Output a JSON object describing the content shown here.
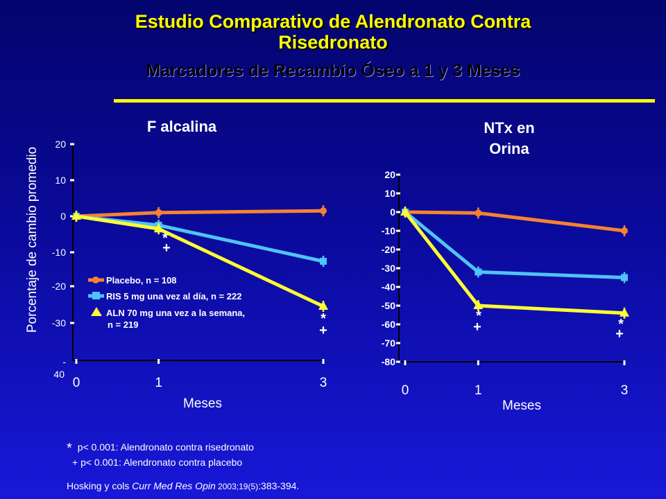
{
  "header": {
    "title_line1": "Estudio Comparativo de Alendronato Contra",
    "title_line2": "Risedronato",
    "subtitle": "Marcadores de Recambio  Óseo a 1 y 3 Meses"
  },
  "colors": {
    "placebo": "#f58231",
    "ris": "#4fc3f7",
    "aln": "#ffff33",
    "accent": "#ffff00"
  },
  "ylabel": "Porcentaje de cambio promedio",
  "legend": {
    "placebo": "Placebo,   n = 108",
    "ris": "RIS 5 mg una vez al día,   n = 222",
    "aln_line1": "ALN 70  mg una vez a la semana,",
    "aln_line2": "n = 219"
  },
  "chart_data": [
    {
      "type": "line",
      "title": "F alcalina",
      "xlabel": "Meses",
      "ylim": [
        -40,
        20
      ],
      "yticks": [
        "20",
        "10",
        "0",
        "-10",
        "-20",
        "-30",
        "-",
        "40"
      ],
      "xticks": [
        "0",
        "1",
        "3"
      ],
      "x": [
        0,
        1,
        3
      ],
      "series": [
        {
          "name": "Placebo,   n = 108",
          "values": [
            0,
            1,
            1.5
          ]
        },
        {
          "name": "RIS 5 mg una vez al día,   n = 222",
          "values": [
            0,
            -2.5,
            -12.5
          ]
        },
        {
          "name": "ALN 70  mg una vez a la semana, n = 219",
          "values": [
            0,
            -3.5,
            -25
          ]
        }
      ],
      "annotations": [
        {
          "x": 1,
          "text": "*"
        },
        {
          "x": 1,
          "text": "+"
        },
        {
          "x": 3,
          "text": "*"
        },
        {
          "x": 3,
          "text": "+"
        }
      ]
    },
    {
      "type": "line",
      "title_line1": "NTx en",
      "title_line2": "Orina",
      "xlabel": "Meses",
      "ylim": [
        -80,
        20
      ],
      "yticks": [
        "20",
        "10",
        "0",
        "-10",
        "-20",
        "-30",
        "-40",
        "-50",
        "-60",
        "-70",
        "-80"
      ],
      "xticks": [
        "0",
        "1",
        "3"
      ],
      "x": [
        0,
        1,
        3
      ],
      "series": [
        {
          "name": "Placebo,   n = 108",
          "values": [
            0,
            -0.5,
            -10
          ]
        },
        {
          "name": "RIS 5 mg una vez al día,   n = 222",
          "values": [
            0,
            -32,
            -35
          ]
        },
        {
          "name": "ALN 70  mg una vez a la semana, n = 219",
          "values": [
            0,
            -50,
            -54
          ]
        }
      ],
      "annotations": [
        {
          "x": 1,
          "text": "*"
        },
        {
          "x": 1,
          "text": "+"
        },
        {
          "x": 3,
          "text": "*"
        },
        {
          "x": 3,
          "text": "+"
        }
      ]
    }
  ],
  "footnotes": {
    "star_symbol": "*",
    "star_text": "p< 0.001: Alendronato contra risedronato",
    "plus_text": "+ p< 0.001: Alendronato contra placebo",
    "citation_authors": "Hosking y cols ",
    "citation_journal": "Curr Med Res Opin",
    "citation_year": " 2003;19(5)",
    "citation_pages": ":383-394."
  }
}
